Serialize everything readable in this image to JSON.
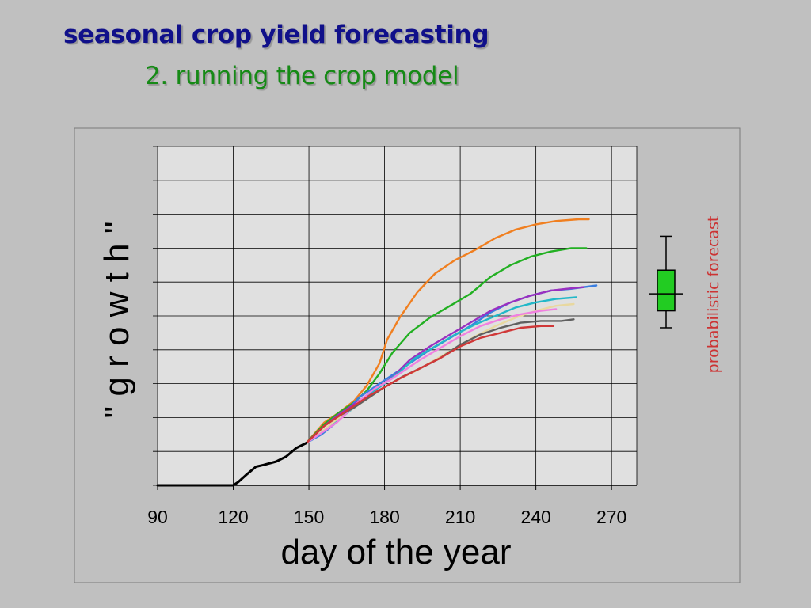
{
  "slide": {
    "title_line1": "seasonal crop yield forecasting",
    "title_line2": "2. running the crop model"
  },
  "colors": {
    "title1": "#10108a",
    "title2": "#168a16",
    "annotation": "#cc3333",
    "box_fill": "#22cc22"
  },
  "chart_data": {
    "type": "line",
    "xlabel": "day of the year",
    "ylabel": "\" g r o w t h \"",
    "xlim": [
      90,
      280
    ],
    "ylim": [
      0,
      100
    ],
    "xticks": [
      90,
      120,
      150,
      180,
      210,
      240,
      270
    ],
    "grid": true,
    "annotation": "probabilistic forecast",
    "observed": {
      "color": "#000000",
      "points": [
        [
          90,
          0
        ],
        [
          120,
          0
        ],
        [
          122,
          1
        ],
        [
          125,
          3
        ],
        [
          129,
          5.5
        ],
        [
          132,
          6
        ],
        [
          137,
          7
        ],
        [
          141,
          8.5
        ],
        [
          145,
          11
        ],
        [
          149,
          12.5
        ]
      ]
    },
    "series": [
      {
        "color": "#f07f20",
        "points": [
          [
            149,
            12.5
          ],
          [
            156,
            18.5
          ],
          [
            162,
            21.5
          ],
          [
            168,
            25
          ],
          [
            173,
            29.5
          ],
          [
            178,
            36
          ],
          [
            181,
            43
          ],
          [
            186,
            49.5
          ],
          [
            193,
            57
          ],
          [
            200,
            62.5
          ],
          [
            208,
            66.5
          ],
          [
            216,
            69.5
          ],
          [
            224,
            73
          ],
          [
            232,
            75.5
          ],
          [
            240,
            77
          ],
          [
            248,
            78
          ],
          [
            257,
            78.5
          ],
          [
            261,
            78.5
          ]
        ]
      },
      {
        "color": "#22b022",
        "points": [
          [
            149,
            12.5
          ],
          [
            156,
            18
          ],
          [
            162,
            21.5
          ],
          [
            168,
            24.5
          ],
          [
            173,
            28
          ],
          [
            178,
            33
          ],
          [
            183,
            39
          ],
          [
            190,
            45
          ],
          [
            198,
            49.5
          ],
          [
            206,
            53
          ],
          [
            214,
            56.5
          ],
          [
            222,
            61.5
          ],
          [
            230,
            65
          ],
          [
            238,
            67.5
          ],
          [
            246,
            69
          ],
          [
            254,
            70
          ],
          [
            260,
            70
          ]
        ]
      },
      {
        "color": "#3a7ee0",
        "points": [
          [
            149,
            12.5
          ],
          [
            155,
            15
          ],
          [
            160,
            18
          ],
          [
            165,
            22
          ],
          [
            170,
            26
          ],
          [
            176,
            29
          ],
          [
            182,
            32
          ],
          [
            190,
            36
          ],
          [
            198,
            40
          ],
          [
            206,
            43.5
          ],
          [
            214,
            47
          ],
          [
            222,
            51
          ],
          [
            230,
            54
          ],
          [
            238,
            56
          ],
          [
            246,
            57.5
          ],
          [
            254,
            58
          ],
          [
            264,
            59
          ]
        ]
      },
      {
        "color": "#9a30c0",
        "points": [
          [
            149,
            12.5
          ],
          [
            156,
            17.5
          ],
          [
            162,
            21
          ],
          [
            168,
            24
          ],
          [
            173,
            26.5
          ],
          [
            178,
            29
          ],
          [
            184,
            32.5
          ],
          [
            190,
            37
          ],
          [
            198,
            41
          ],
          [
            206,
            44.5
          ],
          [
            214,
            48
          ],
          [
            222,
            51.5
          ],
          [
            230,
            54
          ],
          [
            238,
            56
          ],
          [
            246,
            57.5
          ],
          [
            252,
            58
          ],
          [
            259,
            58.5
          ]
        ]
      },
      {
        "color": "#22b8c8",
        "points": [
          [
            149,
            12.5
          ],
          [
            156,
            16
          ],
          [
            162,
            19.5
          ],
          [
            168,
            23
          ],
          [
            174,
            27
          ],
          [
            180,
            30
          ],
          [
            186,
            33.5
          ],
          [
            192,
            37.5
          ],
          [
            200,
            41
          ],
          [
            208,
            44.5
          ],
          [
            216,
            47.5
          ],
          [
            224,
            50
          ],
          [
            232,
            52.5
          ],
          [
            240,
            54
          ],
          [
            248,
            55
          ],
          [
            256,
            55.5
          ]
        ]
      },
      {
        "color": "#e8d8a0",
        "points": [
          [
            149,
            12.5
          ],
          [
            156,
            16.5
          ],
          [
            162,
            20
          ],
          [
            168,
            23
          ],
          [
            174,
            26
          ],
          [
            180,
            29
          ],
          [
            186,
            31.5
          ],
          [
            193,
            34
          ],
          [
            200,
            37
          ],
          [
            208,
            40.5
          ],
          [
            216,
            44
          ],
          [
            224,
            47
          ],
          [
            232,
            49.5
          ],
          [
            240,
            51.5
          ],
          [
            248,
            53
          ],
          [
            255,
            53.5
          ]
        ]
      },
      {
        "color": "#f080e0",
        "points": [
          [
            149,
            12.5
          ],
          [
            155,
            15.5
          ],
          [
            161,
            18.5
          ],
          [
            166,
            22
          ],
          [
            171,
            25.5
          ],
          [
            176,
            28.5
          ],
          [
            182,
            31
          ],
          [
            188,
            34
          ],
          [
            194,
            37
          ],
          [
            202,
            40.5
          ],
          [
            210,
            44
          ],
          [
            218,
            47
          ],
          [
            226,
            49
          ],
          [
            234,
            50.5
          ],
          [
            242,
            51.5
          ],
          [
            248,
            52
          ]
        ]
      },
      {
        "color": "#606060",
        "points": [
          [
            149,
            12.5
          ],
          [
            156,
            17.5
          ],
          [
            162,
            20.5
          ],
          [
            168,
            23
          ],
          [
            174,
            26
          ],
          [
            180,
            29
          ],
          [
            187,
            32
          ],
          [
            194,
            34.5
          ],
          [
            202,
            37.5
          ],
          [
            210,
            41.5
          ],
          [
            218,
            44.5
          ],
          [
            226,
            46.5
          ],
          [
            234,
            48
          ],
          [
            242,
            48.5
          ],
          [
            250,
            48.5
          ],
          [
            255,
            49
          ]
        ]
      },
      {
        "color": "#d03838",
        "points": [
          [
            149,
            12.5
          ],
          [
            156,
            17.5
          ],
          [
            162,
            20.5
          ],
          [
            168,
            23.5
          ],
          [
            174,
            26.5
          ],
          [
            180,
            29
          ],
          [
            186,
            31.5
          ],
          [
            194,
            34.5
          ],
          [
            202,
            37.5
          ],
          [
            210,
            41
          ],
          [
            218,
            43.5
          ],
          [
            226,
            45
          ],
          [
            234,
            46.5
          ],
          [
            242,
            47
          ],
          [
            247,
            47
          ]
        ]
      }
    ],
    "forecast_box": {
      "whisker_low": 46.5,
      "q1": 51.5,
      "median": 56.5,
      "q3": 63.5,
      "whisker_high": 73.5
    }
  }
}
